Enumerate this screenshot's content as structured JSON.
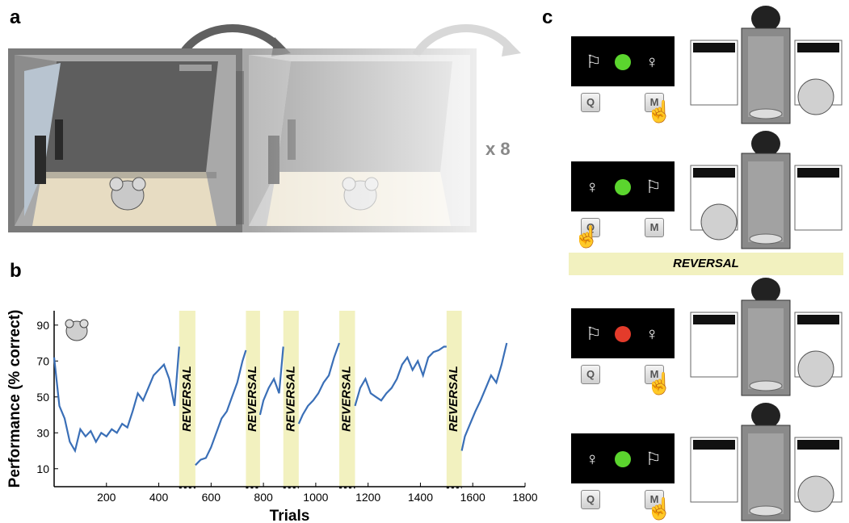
{
  "panels": {
    "a": "a",
    "b": "b",
    "c": "c"
  },
  "panel_a": {
    "repeat_label": "x 8"
  },
  "panel_c": {
    "reversal_label": "REVERSAL",
    "rows": [
      {
        "key_left": "Q",
        "key_right": "M",
        "face": "happy"
      },
      {
        "key_left": "Q",
        "key_right": "M",
        "face": "happy"
      },
      {
        "key_left": "Q",
        "key_right": "M",
        "face": "sad"
      },
      {
        "key_left": "Q",
        "key_right": "M",
        "face": "happy"
      }
    ]
  },
  "chart_data": {
    "type": "line",
    "xlabel": "Trials",
    "ylabel": "Performance (% correct)",
    "xlim": [
      0,
      1800
    ],
    "ylim": [
      0,
      98
    ],
    "xticks": [
      200,
      400,
      600,
      800,
      1000,
      1200,
      1400,
      1600,
      1800
    ],
    "yticks": [
      10,
      30,
      50,
      70,
      90
    ],
    "series_color": "#3a6fb7",
    "reversal_color": "#f2f1bf",
    "reversal_label": "REVERSAL",
    "reversals": [
      {
        "start": 478,
        "end": 540
      },
      {
        "start": 733,
        "end": 787
      },
      {
        "start": 876,
        "end": 935
      },
      {
        "start": 1090,
        "end": 1150
      },
      {
        "start": 1500,
        "end": 1558
      }
    ],
    "x": [
      0,
      20,
      40,
      60,
      80,
      100,
      120,
      140,
      160,
      180,
      200,
      220,
      240,
      260,
      280,
      300,
      320,
      340,
      360,
      380,
      400,
      420,
      440,
      460,
      478,
      540,
      560,
      580,
      600,
      620,
      640,
      660,
      680,
      700,
      720,
      733,
      787,
      800,
      820,
      840,
      860,
      876,
      935,
      950,
      970,
      990,
      1010,
      1030,
      1050,
      1070,
      1090,
      1150,
      1170,
      1190,
      1210,
      1230,
      1250,
      1270,
      1290,
      1310,
      1330,
      1350,
      1370,
      1390,
      1410,
      1430,
      1450,
      1470,
      1490,
      1500,
      1558,
      1570,
      1590,
      1610,
      1630,
      1650,
      1670,
      1690,
      1710,
      1730
    ],
    "y": [
      72,
      45,
      38,
      25,
      20,
      32,
      28,
      31,
      25,
      30,
      28,
      32,
      30,
      35,
      33,
      42,
      52,
      48,
      55,
      62,
      65,
      68,
      60,
      45,
      78,
      12,
      15,
      16,
      22,
      30,
      38,
      42,
      50,
      58,
      70,
      76,
      40,
      48,
      55,
      60,
      52,
      78,
      35,
      40,
      45,
      48,
      52,
      58,
      62,
      72,
      80,
      45,
      55,
      60,
      52,
      50,
      48,
      52,
      55,
      60,
      68,
      72,
      65,
      70,
      62,
      72,
      75,
      76,
      78,
      78,
      20,
      28,
      35,
      42,
      48,
      55,
      62,
      58,
      68,
      80
    ]
  }
}
